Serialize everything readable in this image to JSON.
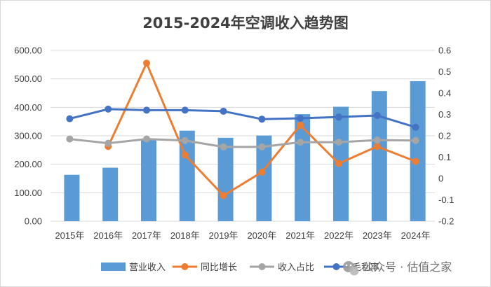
{
  "chart_data": {
    "type": "bar+line",
    "title": "2015-2024年空调收入趋势图",
    "categories": [
      "2015年",
      "2016年",
      "2017年",
      "2018年",
      "2019年",
      "2020年",
      "2021年",
      "2022年",
      "2023年",
      "2024年"
    ],
    "left_axis": {
      "min": 0,
      "max": 600,
      "step": 100,
      "tick_labels": [
        "0.00",
        "100.00",
        "200.00",
        "300.00",
        "400.00",
        "500.00",
        "600.00"
      ]
    },
    "right_axis": {
      "min": -0.2,
      "max": 0.6,
      "step": 0.1,
      "tick_labels": [
        "-0.2",
        "-0.1",
        "0",
        "0.1",
        "0.2",
        "0.3",
        "0.4",
        "0.5",
        "0.6"
      ]
    },
    "series": [
      {
        "name": "营业收入",
        "type": "bar",
        "axis": "left",
        "color": "#5b9bd5",
        "values": [
          163,
          188,
          290,
          318,
          293,
          301,
          376,
          402,
          457,
          492
        ]
      },
      {
        "name": "同比增长",
        "type": "line",
        "axis": "right",
        "color": "#ed7d31",
        "values": [
          null,
          0.15,
          0.54,
          0.11,
          -0.08,
          0.03,
          0.25,
          0.07,
          0.15,
          0.08
        ]
      },
      {
        "name": "收入占比",
        "type": "line",
        "axis": "right",
        "color": "#a5a5a5",
        "values": [
          0.185,
          0.165,
          0.185,
          0.178,
          0.148,
          0.148,
          0.17,
          0.17,
          0.18,
          0.178
        ]
      },
      {
        "name": "毛利率",
        "type": "line",
        "axis": "right",
        "color": "#4472c4",
        "values": [
          0.28,
          0.325,
          0.32,
          0.32,
          0.315,
          0.278,
          0.282,
          0.288,
          0.295,
          0.24
        ]
      }
    ],
    "legend_position": "bottom",
    "grid": true
  },
  "watermark": {
    "icon": "wechat-icon",
    "text": "公众号 · 估值之家"
  }
}
